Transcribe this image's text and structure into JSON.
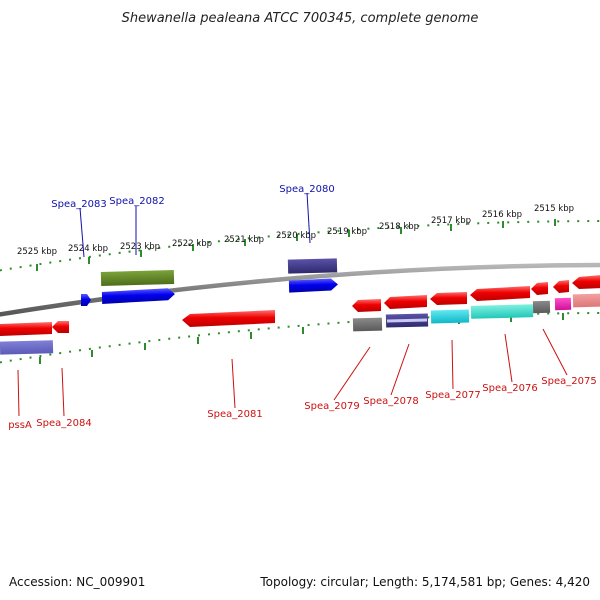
{
  "title": "Shewanella pealeana ATCC 700345, complete genome",
  "footer": {
    "accession": "Accession: NC_009901",
    "summary": "Topology: circular; Length: 5,174,581 bp; Genes: 4,420"
  },
  "colors": {
    "backbone": "#808080",
    "tick_marks": "#2e8b2e",
    "forward_label": "#1111aa",
    "reverse_label": "#cc1111"
  },
  "scale_labels": [
    "2525 kbp",
    "2524 kbp",
    "2523 kbp",
    "2522 kbp",
    "2521 kbp",
    "2520 kbp",
    "2519 kbp",
    "2518 kbp",
    "2517 kbp",
    "2516 kbp",
    "2515 kbp"
  ],
  "gene_labels_forward": [
    "Spea_2083",
    "Spea_2082",
    "Spea_2080"
  ],
  "gene_labels_reverse": [
    "pssA",
    "Spea_2084",
    "Spea_2081",
    "Spea_2079",
    "Spea_2078",
    "Spea_2077",
    "Spea_2076",
    "Spea_2075"
  ]
}
